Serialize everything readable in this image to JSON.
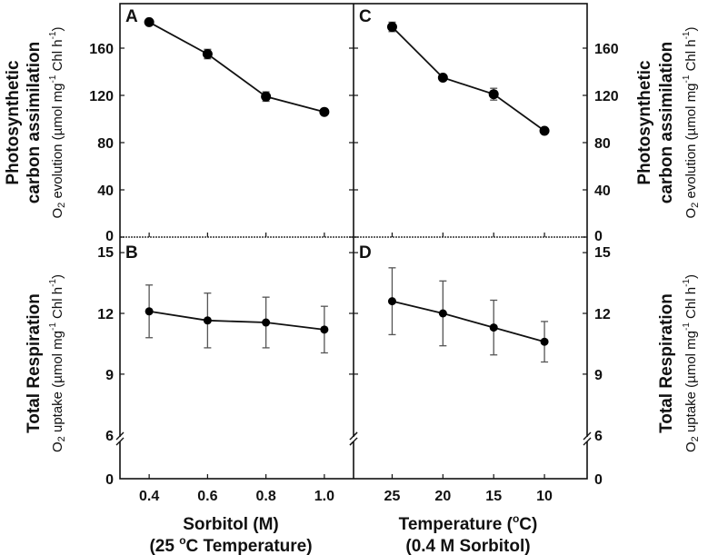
{
  "chart_data": [
    {
      "panel": "A",
      "type": "line",
      "x": [
        0.4,
        0.6,
        0.8,
        1.0
      ],
      "values": [
        182,
        155,
        119,
        106
      ],
      "errors": [
        2,
        4,
        4,
        2
      ],
      "xlim": [
        0.3,
        1.1
      ],
      "ylim": [
        0,
        200
      ],
      "yticks": [
        0,
        40,
        80,
        120,
        160
      ],
      "ytick_side": "left"
    },
    {
      "panel": "B",
      "type": "line",
      "x": [
        0.4,
        0.6,
        0.8,
        1.0
      ],
      "values": [
        12.1,
        11.65,
        11.55,
        11.2
      ],
      "errors": [
        1.3,
        1.35,
        1.25,
        1.15
      ],
      "xlim": [
        0.3,
        1.1
      ],
      "ylim": [
        6,
        15.4
      ],
      "yticks": [
        15,
        12,
        9,
        6,
        0
      ],
      "ytick_side": "left",
      "axis_break": true
    },
    {
      "panel": "C",
      "type": "line",
      "x": [
        25,
        20,
        15,
        10
      ],
      "values": [
        178,
        135,
        121,
        90
      ],
      "errors": [
        4,
        2,
        5,
        2
      ],
      "xlim": [
        28.8,
        5.8
      ],
      "ylim": [
        0,
        200
      ],
      "yticks": [
        0,
        40,
        80,
        120,
        160
      ],
      "ytick_side": "right"
    },
    {
      "panel": "D",
      "type": "line",
      "x": [
        25,
        20,
        15,
        10
      ],
      "values": [
        12.6,
        12.0,
        11.3,
        10.6
      ],
      "errors": [
        1.65,
        1.6,
        1.35,
        1.0
      ],
      "xlim": [
        28.8,
        5.8
      ],
      "ylim": [
        6,
        15.4
      ],
      "yticks": [
        15,
        12,
        9,
        6,
        0
      ],
      "ytick_side": "right",
      "axis_break": true
    }
  ],
  "labels": {
    "top_title_1": "Photosynthetic",
    "top_title_2": "carbon assimilation",
    "top_sub": {
      "o": "O",
      "sub": "2",
      "text": " evolution (µmol mg",
      "sup1": "-1",
      "mid": " Chl h",
      "sup2": "-1",
      "end": ")"
    },
    "bottom_title": "Total Respiration",
    "bottom_sub": {
      "o": "O",
      "sub": "2",
      "text": " uptake (µmol mg",
      "sup1": "-1",
      "mid": " Chl h",
      "sup2": "-1",
      "end": ")"
    },
    "x_left_ticks": [
      "0.4",
      "0.6",
      "0.8",
      "1.0"
    ],
    "x_right_ticks": [
      "25",
      "20",
      "15",
      "10"
    ],
    "x_left_title_1": "Sorbitol (M)",
    "x_left_title_2a": "(25 ",
    "x_left_title_2sup": "o",
    "x_left_title_2b": "C Temperature)",
    "x_right_title_1a": "Temperature (",
    "x_right_title_1sup": "o",
    "x_right_title_1b": "C)",
    "x_right_title_2": "(0.4 M Sorbitol)"
  }
}
